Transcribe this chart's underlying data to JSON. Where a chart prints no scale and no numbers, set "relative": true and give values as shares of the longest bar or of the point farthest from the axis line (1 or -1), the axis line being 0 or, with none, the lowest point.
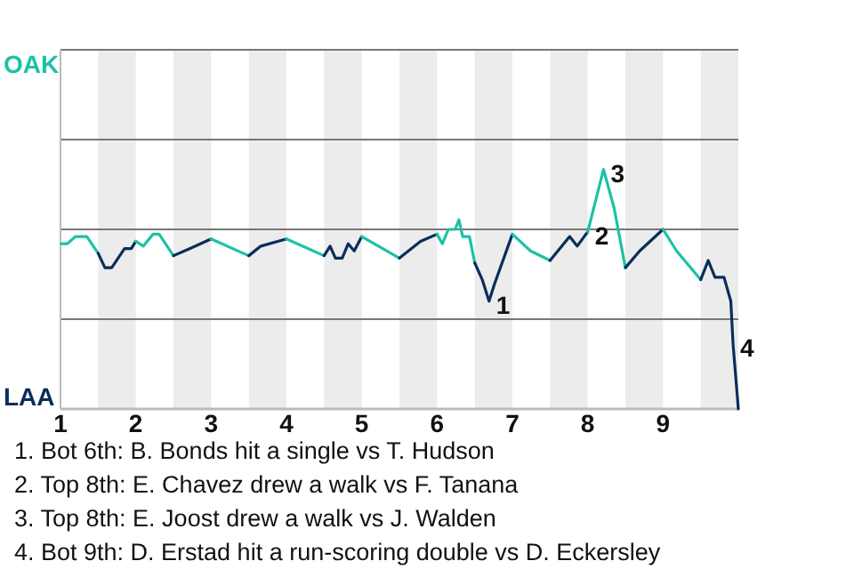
{
  "chart_data": {
    "type": "line",
    "relative": true,
    "xlim": [
      1,
      10
    ],
    "xticks": [
      1,
      2,
      3,
      4,
      5,
      6,
      7,
      8,
      9
    ],
    "marker": "none",
    "line_style": "solid",
    "ref_lines": [
      {
        "axis": "y",
        "value": 0.375,
        "color": "#777777"
      },
      {
        "axis": "y",
        "value": 0.75,
        "color": "#777777"
      },
      {
        "axis": "y",
        "value": 1.125,
        "color": "#777777"
      },
      {
        "axis": "y",
        "value": 1.5,
        "color": "#777777"
      }
    ],
    "bands": [
      {
        "axis": "x",
        "from": 1.5,
        "to": 2,
        "color": "#ececec"
      },
      {
        "axis": "x",
        "from": 2.5,
        "to": 3,
        "color": "#ececec"
      },
      {
        "axis": "x",
        "from": 3.5,
        "to": 4,
        "color": "#ececec"
      },
      {
        "axis": "x",
        "from": 4.5,
        "to": 5,
        "color": "#ececec"
      },
      {
        "axis": "x",
        "from": 5.5,
        "to": 6,
        "color": "#ececec"
      },
      {
        "axis": "x",
        "from": 6.5,
        "to": 7,
        "color": "#ececec"
      },
      {
        "axis": "x",
        "from": 7.5,
        "to": 8,
        "color": "#ececec"
      },
      {
        "axis": "x",
        "from": 8.5,
        "to": 9,
        "color": "#ececec"
      },
      {
        "axis": "x",
        "from": 9.5,
        "to": 10,
        "color": "#ececec"
      }
    ],
    "series": [
      {
        "color": "#1cc2a6",
        "x": [
          1.01,
          1.09,
          1.2,
          1.35,
          1.5
        ],
        "values": [
          0.69,
          0.69,
          0.72,
          0.72,
          0.65
        ]
      },
      {
        "color": "#0b2d5b",
        "x": [
          1.5,
          1.59,
          1.68,
          1.85,
          1.94,
          2
        ],
        "values": [
          0.65,
          0.59,
          0.59,
          0.67,
          0.67,
          0.7
        ]
      },
      {
        "color": "#1cc2a6",
        "x": [
          2,
          2.1,
          2.23,
          2.31,
          2.5
        ],
        "values": [
          0.7,
          0.68,
          0.73,
          0.73,
          0.64
        ]
      },
      {
        "color": "#0b2d5b",
        "x": [
          2.5,
          2.72,
          3
        ],
        "values": [
          0.64,
          0.67,
          0.71
        ]
      },
      {
        "color": "#1cc2a6",
        "x": [
          3,
          3.5
        ],
        "values": [
          0.71,
          0.64
        ]
      },
      {
        "color": "#0b2d5b",
        "x": [
          3.5,
          3.66,
          4
        ],
        "values": [
          0.64,
          0.68,
          0.71
        ]
      },
      {
        "color": "#1cc2a6",
        "x": [
          4,
          4.5
        ],
        "values": [
          0.71,
          0.64
        ]
      },
      {
        "color": "#0b2d5b",
        "x": [
          4.5,
          4.58,
          4.65,
          4.74,
          4.82,
          4.9,
          5
        ],
        "values": [
          0.64,
          0.68,
          0.63,
          0.63,
          0.69,
          0.66,
          0.72
        ]
      },
      {
        "color": "#1cc2a6",
        "x": [
          5,
          5.5
        ],
        "values": [
          0.72,
          0.63
        ]
      },
      {
        "color": "#0b2d5b",
        "x": [
          5.5,
          5.78,
          6
        ],
        "values": [
          0.63,
          0.7,
          0.73
        ]
      },
      {
        "color": "#1cc2a6",
        "x": [
          6,
          6.07,
          6.15,
          6.24,
          6.29,
          6.34,
          6.43,
          6.5
        ],
        "values": [
          0.73,
          0.69,
          0.75,
          0.75,
          0.79,
          0.72,
          0.72,
          0.61
        ]
      },
      {
        "color": "#0b2d5b",
        "x": [
          6.5,
          6.6,
          6.69,
          6.76,
          7
        ],
        "values": [
          0.61,
          0.54,
          0.45,
          0.52,
          0.73
        ]
      },
      {
        "color": "#1cc2a6",
        "x": [
          7,
          7.24,
          7.5
        ],
        "values": [
          0.73,
          0.66,
          0.62
        ]
      },
      {
        "color": "#0b2d5b",
        "x": [
          7.5,
          7.76,
          7.86,
          8
        ],
        "values": [
          0.62,
          0.72,
          0.68,
          0.74
        ]
      },
      {
        "color": "#1cc2a6",
        "x": [
          8,
          8.21,
          8.35,
          8.5
        ],
        "values": [
          0.74,
          1,
          0.84,
          0.59
        ]
      },
      {
        "color": "#0b2d5b",
        "x": [
          8.5,
          8.69,
          9
        ],
        "values": [
          0.59,
          0.66,
          0.75
        ]
      },
      {
        "color": "#1cc2a6",
        "x": [
          9,
          9.18,
          9.5
        ],
        "values": [
          0.75,
          0.66,
          0.54
        ]
      },
      {
        "color": "#0b2d5b",
        "x": [
          9.5,
          9.6,
          9.69,
          9.81,
          9.9,
          9.93,
          10
        ],
        "values": [
          0.54,
          0.62,
          0.55,
          0.55,
          0.45,
          0.27,
          0
        ]
      }
    ],
    "annotations": [
      "OAK",
      "LAA",
      {
        "text": "1",
        "x": 6.69,
        "y": 0.45
      },
      {
        "text": "2",
        "x": 8,
        "y": 0.74
      },
      {
        "text": "3",
        "x": 8.21,
        "y": 1
      },
      {
        "text": "4",
        "x": 9.93,
        "y": 0.27
      },
      "1. Bot 6th: B. Bonds hit a single vs T. Hudson",
      "2. Top 8th: E. Chavez drew a walk vs F. Tanana",
      "3. Top 8th: E. Joost drew a walk vs J. Walden",
      "4. Bot 9th: D. Erstad hit a run-scoring double vs D. Eckersley"
    ]
  }
}
